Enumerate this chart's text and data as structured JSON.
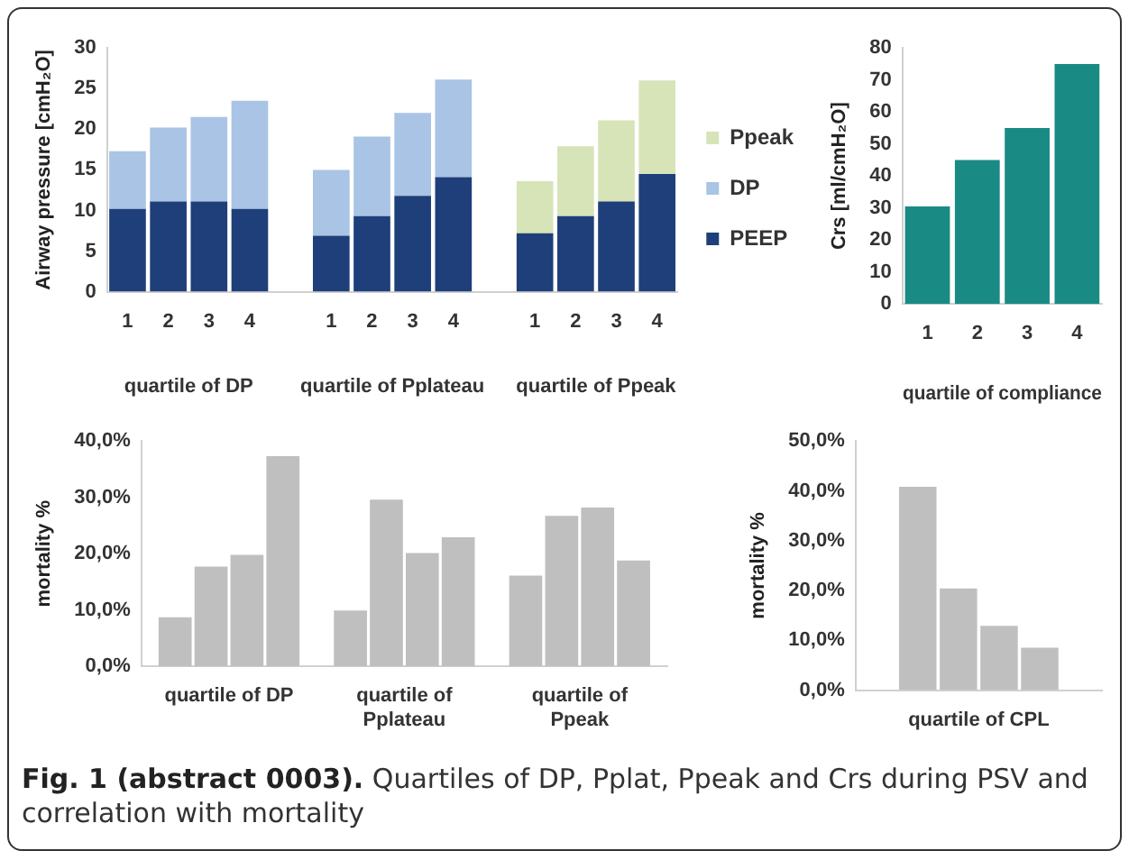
{
  "chart_data": [
    {
      "type": "bar",
      "ylabel": "Airway pressure [cmH₂O]",
      "categories": [
        "1",
        "2",
        "3",
        "4",
        null,
        "1",
        "2",
        "3",
        "4",
        null,
        "1",
        "2",
        "3",
        "4"
      ],
      "stacked": true,
      "legend": "right",
      "ylim": [
        0,
        30
      ],
      "yticks": [
        0,
        5,
        10,
        15,
        20,
        25,
        30
      ],
      "series": [
        {
          "name": "PEEP",
          "color": "#1f3f7a",
          "values": [
            10.2,
            11.1,
            11.1,
            10.2,
            null,
            6.9,
            9.3,
            11.8,
            14.1,
            null,
            7.2,
            9.3,
            11.1,
            14.5
          ]
        },
        {
          "name": "DP",
          "color": "#a9c4e4",
          "values": [
            7.1,
            9.1,
            10.4,
            13.3,
            null,
            8.1,
            9.8,
            10.2,
            12.0,
            null,
            null,
            null,
            null,
            null
          ]
        },
        {
          "name": "Ppeak",
          "color": "#d6e4b8",
          "values": [
            null,
            null,
            null,
            null,
            null,
            null,
            null,
            null,
            null,
            null,
            6.4,
            8.6,
            10.0,
            11.5
          ]
        }
      ],
      "annotations": [
        "quartile of DP",
        "quartile of Pplateau",
        "quartile of Ppeak"
      ]
    },
    {
      "type": "bar",
      "ylabel": "Crs [ml/cmH₂O]",
      "xlabel": "quartile of compliance",
      "categories": [
        "1",
        "2",
        "3",
        "4"
      ],
      "color": "#1a8a84",
      "values": [
        30.5,
        45,
        55,
        75
      ],
      "ylim": [
        0,
        80
      ],
      "yticks": [
        0,
        10,
        20,
        30,
        40,
        50,
        60,
        70,
        80
      ]
    },
    {
      "type": "bar",
      "ylabel": "mortality %",
      "categories": [
        "quartile of DP",
        "quartile of Pplateau",
        "quartile of Ppeak"
      ],
      "ylim": [
        0,
        40
      ],
      "yticks": [
        {
          "value": 0,
          "label": "0,0%"
        },
        {
          "value": 10,
          "label": "10,0%"
        },
        {
          "value": 20,
          "label": "20,0%"
        },
        {
          "value": 30,
          "label": "30,0%"
        },
        {
          "value": 40,
          "label": "40,0%"
        }
      ],
      "series": [
        {
          "color": "#bfbfbf",
          "values": [
            8.7,
            9.9,
            16.1
          ]
        },
        {
          "color": "#bfbfbf",
          "values": [
            17.7,
            29.6,
            26.7
          ]
        },
        {
          "color": "#bfbfbf",
          "values": [
            19.8,
            20.1,
            28.2
          ]
        },
        {
          "color": "#bfbfbf",
          "values": [
            37.3,
            22.9,
            18.8
          ]
        }
      ]
    },
    {
      "type": "bar",
      "ylabel": "mortality %",
      "categories": [
        "quartile of CPL"
      ],
      "series": [
        {
          "color": "#bfbfbf",
          "values": [
            40.8
          ]
        },
        {
          "color": "#bfbfbf",
          "values": [
            20.4
          ]
        },
        {
          "color": "#bfbfbf",
          "values": [
            12.9
          ]
        },
        {
          "color": "#bfbfbf",
          "values": [
            8.5
          ]
        }
      ],
      "ylim": [
        0,
        50
      ],
      "yticks": [
        {
          "value": 0,
          "label": "0,0%"
        },
        {
          "value": 10,
          "label": "10,0%"
        },
        {
          "value": 20,
          "label": "20,0%"
        },
        {
          "value": 30,
          "label": "30,0%"
        },
        {
          "value": 40,
          "label": "40,0%"
        },
        {
          "value": 50,
          "label": "50,0%"
        }
      ],
      "annotations": [
        "Fig. 1 (abstract 0003).",
        "Quartiles of DP, Pplat, Ppeak and Crs during PSV and correlation with mortality"
      ]
    }
  ]
}
